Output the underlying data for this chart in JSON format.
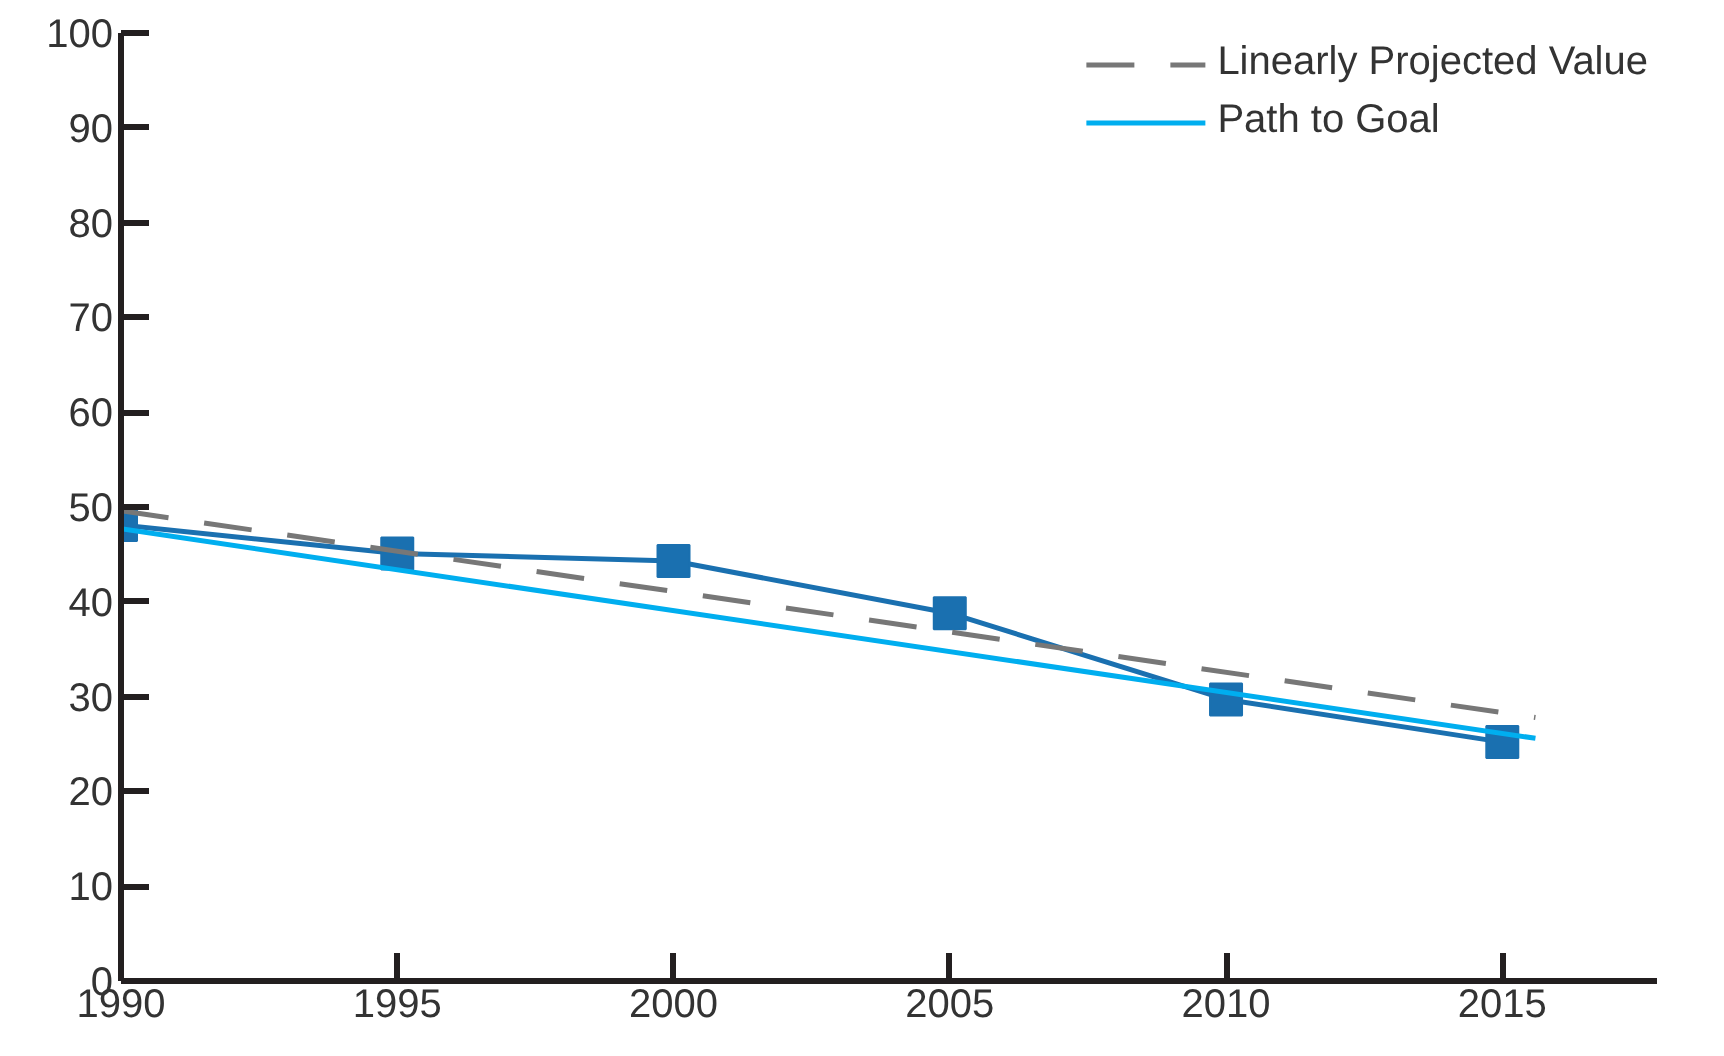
{
  "chart_data": {
    "type": "line",
    "xlim": [
      1990,
      2017.8
    ],
    "ylim": [
      0,
      100
    ],
    "xticks": [
      1990,
      1995,
      2000,
      2005,
      2010,
      2015
    ],
    "yticks": [
      0,
      10,
      20,
      30,
      40,
      50,
      60,
      70,
      80,
      90,
      100
    ],
    "grid": false,
    "legend": "top right",
    "series": [
      {
        "color": "#1a70b0",
        "marker": "square",
        "x": [
          1990,
          1995,
          2000,
          2005,
          2010,
          2015
        ],
        "values": [
          48.1,
          45.1,
          44.3,
          38.8,
          29.7,
          25.2
        ]
      },
      {
        "name": "Linearly Projected Value",
        "color": "#777777",
        "line_style": "dashed",
        "marker": "none",
        "x": [
          1990,
          2015.6
        ],
        "values": [
          49.6,
          27.8
        ]
      },
      {
        "name": "Path to Goal",
        "color": "#00aeef",
        "marker": "none",
        "x": [
          1990,
          2015.6
        ],
        "values": [
          47.7,
          25.6
        ]
      }
    ]
  }
}
